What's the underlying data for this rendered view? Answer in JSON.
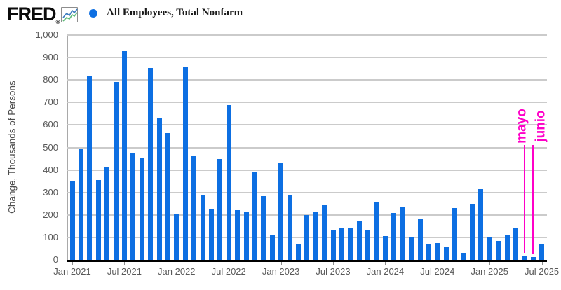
{
  "header": {
    "logo_text": "FRED",
    "registered_mark": "®",
    "legend": {
      "series_label": "All Employees, Total Nonfarm",
      "marker_color": "#0d6fe2"
    }
  },
  "chart_data": {
    "type": "bar",
    "title": "All Employees, Total Nonfarm",
    "ylabel": "Change, Thousands of Persons",
    "ylim": [
      0,
      1000
    ],
    "ytick_interval": 100,
    "ytick_labels_top_to_bottom": [
      "1,000",
      "900",
      "800",
      "700",
      "600",
      "500",
      "400",
      "300",
      "200",
      "100",
      "0"
    ],
    "grid": true,
    "bar_color": "#0d6fe2",
    "gridline_color": "#cbcbcb",
    "axis_color": "#000000",
    "tick_label_color": "#595959",
    "annotation_color": "#ff00c8",
    "months": [
      "Jan 2021",
      "Feb 2021",
      "Mar 2021",
      "Apr 2021",
      "May 2021",
      "Jun 2021",
      "Jul 2021",
      "Aug 2021",
      "Sep 2021",
      "Oct 2021",
      "Nov 2021",
      "Dec 2021",
      "Jan 2022",
      "Feb 2022",
      "Mar 2022",
      "Apr 2022",
      "May 2022",
      "Jun 2022",
      "Jul 2022",
      "Aug 2022",
      "Sep 2022",
      "Oct 2022",
      "Nov 2022",
      "Dec 2022",
      "Jan 2023",
      "Feb 2023",
      "Mar 2023",
      "Apr 2023",
      "May 2023",
      "Jun 2023",
      "Jul 2023",
      "Aug 2023",
      "Sep 2023",
      "Oct 2023",
      "Nov 2023",
      "Dec 2023",
      "Jan 2024",
      "Feb 2024",
      "Mar 2024",
      "Apr 2024",
      "May 2024",
      "Jun 2024",
      "Jul 2024",
      "Aug 2024",
      "Sep 2024",
      "Oct 2024",
      "Nov 2024",
      "Dec 2024",
      "Jan 2025",
      "Feb 2025",
      "Mar 2025",
      "Apr 2025",
      "May 2025",
      "Jun 2025",
      "Jul 2025"
    ],
    "values": [
      350,
      495,
      820,
      355,
      410,
      790,
      930,
      475,
      455,
      855,
      630,
      565,
      205,
      860,
      460,
      290,
      225,
      450,
      690,
      220,
      215,
      390,
      285,
      110,
      430,
      290,
      70,
      200,
      215,
      245,
      130,
      140,
      145,
      170,
      130,
      255,
      105,
      210,
      235,
      100,
      180,
      70,
      75,
      60,
      230,
      30,
      250,
      315,
      100,
      85,
      110,
      145,
      20,
      14,
      70
    ],
    "xtick_labels": [
      "Jan 2021",
      "Jul 2021",
      "Jan 2022",
      "Jul 2022",
      "Jan 2023",
      "Jul 2023",
      "Jan 2024",
      "Jul 2024",
      "Jan 2025",
      "Jul 2025"
    ],
    "xtick_month_indexes": [
      0,
      6,
      12,
      18,
      24,
      30,
      36,
      42,
      48,
      54
    ],
    "legend_position": "top",
    "annotations": [
      {
        "label": "mayo",
        "month_index": 52,
        "color": "#ff00c8"
      },
      {
        "label": "junio",
        "month_index": 53,
        "color": "#ff00c8"
      }
    ]
  }
}
